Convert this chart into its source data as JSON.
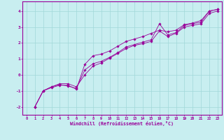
{
  "xlabel": "Windchill (Refroidissement éolien,°C)",
  "background_color": "#c8eef0",
  "line_color": "#990099",
  "grid_color": "#a0d8d8",
  "xlim": [
    -0.5,
    23.5
  ],
  "ylim": [
    -2.5,
    4.6
  ],
  "xticks": [
    0,
    1,
    2,
    3,
    4,
    5,
    6,
    7,
    8,
    9,
    10,
    11,
    12,
    13,
    14,
    15,
    16,
    17,
    18,
    19,
    20,
    21,
    22,
    23
  ],
  "yticks": [
    -2,
    -1,
    0,
    1,
    2,
    3,
    4
  ],
  "series1_x": [
    1,
    2,
    3,
    4,
    5,
    6,
    7,
    8,
    9,
    10,
    11,
    12,
    13,
    14,
    15,
    16,
    17,
    18,
    19,
    20,
    21,
    22,
    23
  ],
  "series1_y": [
    -2.0,
    -1.0,
    -0.75,
    -0.6,
    -0.7,
    -0.85,
    0.3,
    0.7,
    0.85,
    1.1,
    1.4,
    1.75,
    1.9,
    2.05,
    2.2,
    3.2,
    2.5,
    2.65,
    3.1,
    3.2,
    3.3,
    4.0,
    4.1
  ],
  "series2_x": [
    1,
    2,
    3,
    4,
    5,
    6,
    7,
    8,
    9,
    10,
    11,
    12,
    13,
    14,
    15,
    16,
    17,
    18,
    19,
    20,
    21,
    22,
    23
  ],
  "series2_y": [
    -2.0,
    -1.0,
    -0.75,
    -0.55,
    -0.55,
    -0.75,
    0.0,
    0.55,
    0.75,
    1.05,
    1.35,
    1.65,
    1.85,
    1.95,
    2.1,
    2.75,
    2.4,
    2.6,
    3.0,
    3.1,
    3.2,
    3.85,
    4.0
  ],
  "series3_x": [
    1,
    2,
    3,
    4,
    5,
    6,
    7,
    8,
    9,
    10,
    11,
    12,
    13,
    14,
    15,
    16,
    17,
    18,
    19,
    20,
    21,
    22,
    23
  ],
  "series3_y": [
    -2.0,
    -1.0,
    -0.8,
    -0.65,
    -0.65,
    -0.9,
    0.65,
    1.2,
    1.3,
    1.5,
    1.8,
    2.1,
    2.25,
    2.4,
    2.6,
    2.8,
    2.7,
    2.8,
    3.15,
    3.25,
    3.4,
    4.0,
    4.1
  ]
}
